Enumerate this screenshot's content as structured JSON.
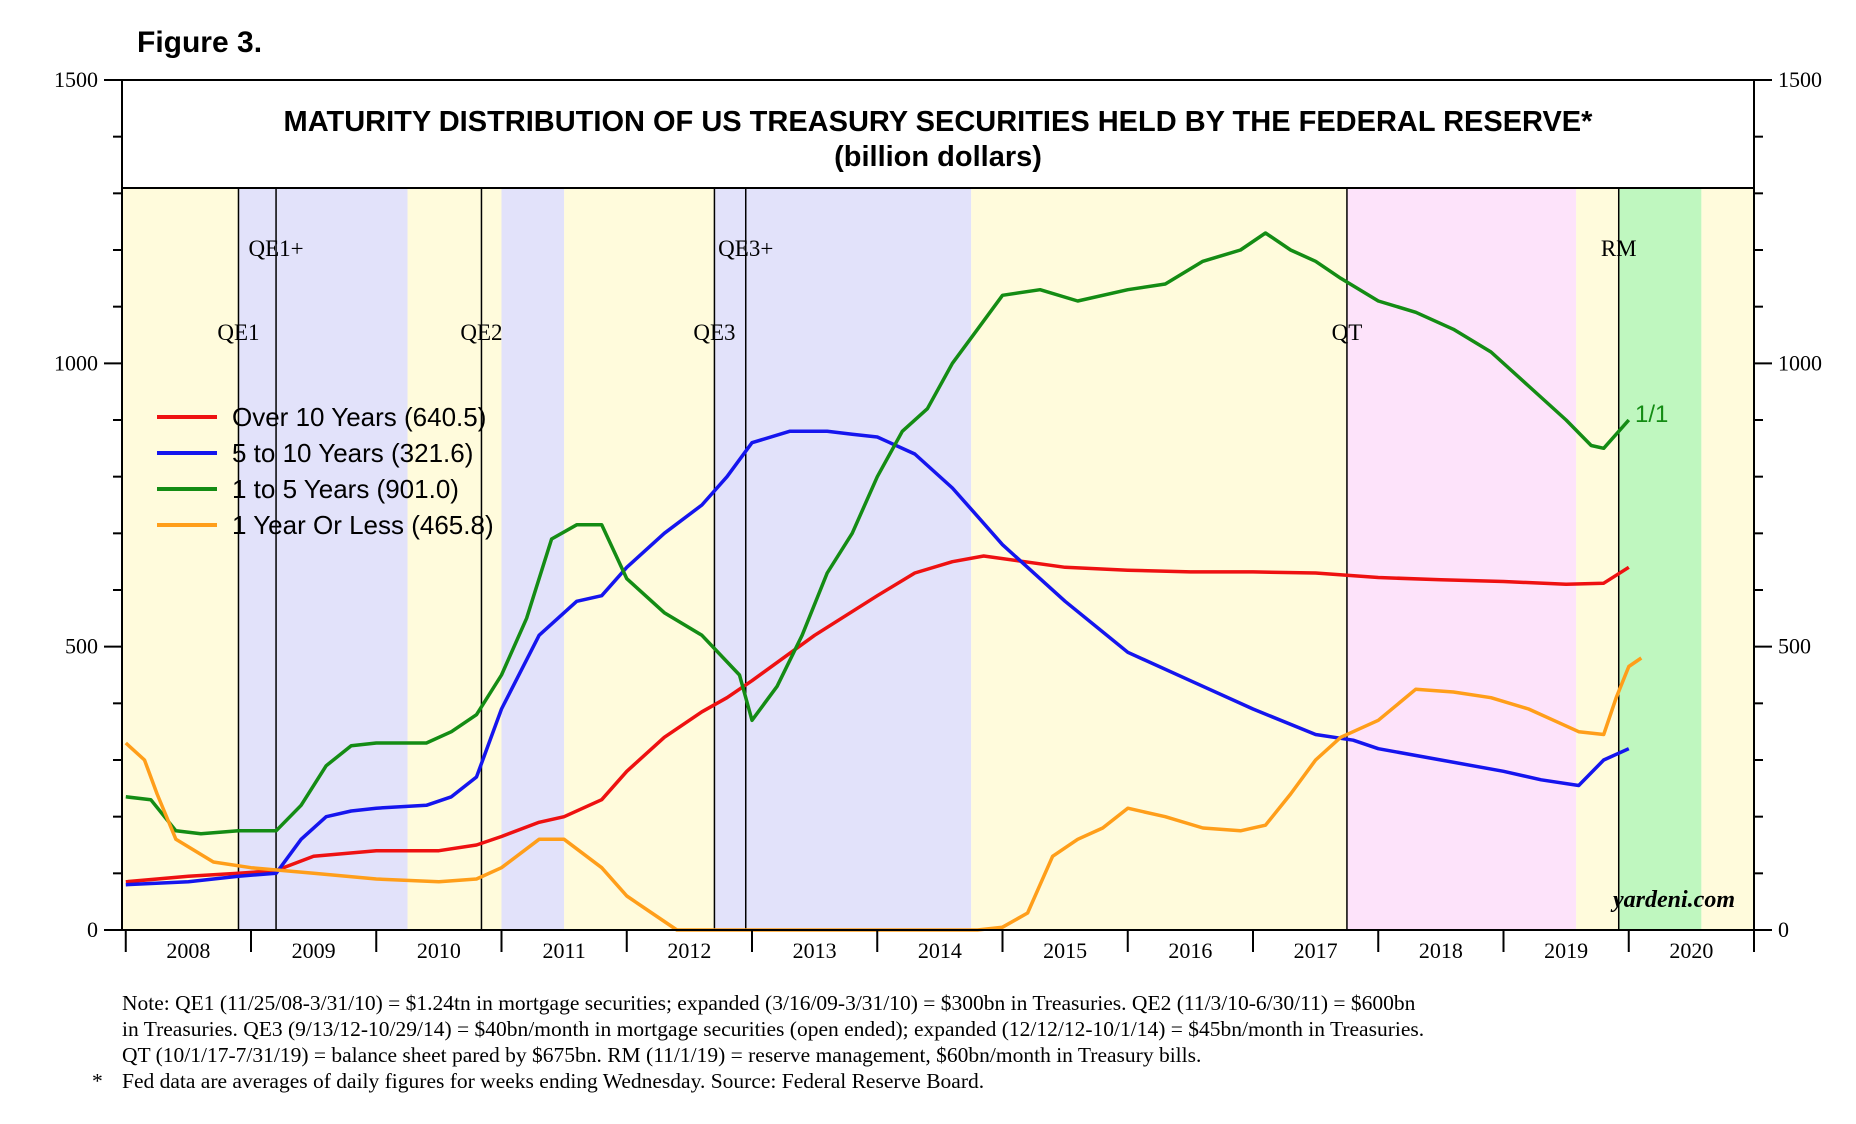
{
  "figure_label": "Figure 3.",
  "chart_data": {
    "type": "line",
    "title": "MATURITY DISTRIBUTION OF US TREASURY SECURITIES HELD BY THE FEDERAL RESERVE*",
    "subtitle": "(billion dollars)",
    "xlabel": "",
    "ylabel": "",
    "xlim": [
      2007.97,
      2021.0
    ],
    "ylim": [
      0,
      1500
    ],
    "y_ticks": [
      "0",
      "500",
      "1000",
      "1500"
    ],
    "x_tick_labels": [
      "2008",
      "2009",
      "2010",
      "2011",
      "2012",
      "2013",
      "2014",
      "2015",
      "2016",
      "2017",
      "2018",
      "2019",
      "2020"
    ],
    "credit": "yardeni.com",
    "latest_label": "1/1",
    "shaded_periods": [
      {
        "start": 2007.97,
        "end": 2008.9,
        "color": "#fffbdc"
      },
      {
        "start": 2008.9,
        "end": 2010.25,
        "color": "#e2e2fa"
      },
      {
        "start": 2010.25,
        "end": 2011.0,
        "color": "#fffbdc"
      },
      {
        "start": 2011.0,
        "end": 2011.5,
        "color": "#e2e2fa"
      },
      {
        "start": 2011.5,
        "end": 2012.7,
        "color": "#fffbdc"
      },
      {
        "start": 2012.7,
        "end": 2014.75,
        "color": "#e2e2fa"
      },
      {
        "start": 2014.75,
        "end": 2017.75,
        "color": "#fffbdc"
      },
      {
        "start": 2017.75,
        "end": 2019.58,
        "color": "#fde3fa"
      },
      {
        "start": 2019.58,
        "end": 2019.92,
        "color": "#fffbdc"
      },
      {
        "start": 2019.92,
        "end": 2020.58,
        "color": "#bff7bf"
      },
      {
        "start": 2020.58,
        "end": 2021.0,
        "color": "#fffbdc"
      }
    ],
    "events": [
      {
        "label": "QE1",
        "date": 2008.9,
        "level": 1
      },
      {
        "label": "QE1+",
        "date": 2009.2,
        "level": 2
      },
      {
        "label": "QE2",
        "date": 2010.84,
        "level": 1
      },
      {
        "label": "QE3",
        "date": 2012.7,
        "level": 1
      },
      {
        "label": "QE3+",
        "date": 2012.95,
        "level": 2
      },
      {
        "label": "QT",
        "date": 2017.75,
        "level": 1
      },
      {
        "label": "RM",
        "date": 2019.92,
        "level": 2
      }
    ],
    "legend": [
      {
        "label": "Over 10 Years (640.5)",
        "color": "#ee1111"
      },
      {
        "label": "5 to 10 Years (321.6)",
        "color": "#1515ee"
      },
      {
        "label": "1 to 5 Years (901.0)",
        "color": "#148c14"
      },
      {
        "label": "1 Year Or Less (465.8)",
        "color": "#ff9e1a"
      }
    ],
    "series": [
      {
        "name": "Over 10 Years",
        "color": "#ee1111",
        "x": [
          2008.0,
          2008.5,
          2008.9,
          2009.2,
          2009.5,
          2010.0,
          2010.5,
          2010.8,
          2011.0,
          2011.3,
          2011.5,
          2011.8,
          2012.0,
          2012.3,
          2012.6,
          2012.8,
          2013.0,
          2013.5,
          2014.0,
          2014.3,
          2014.6,
          2014.85,
          2015.5,
          2016.0,
          2016.5,
          2017.0,
          2017.5,
          2018.0,
          2018.5,
          2019.0,
          2019.5,
          2019.8,
          2020.0
        ],
        "y": [
          85,
          95,
          100,
          105,
          130,
          140,
          140,
          150,
          165,
          190,
          200,
          230,
          280,
          340,
          385,
          410,
          440,
          520,
          590,
          630,
          650,
          660,
          640,
          635,
          632,
          632,
          630,
          622,
          618,
          615,
          610,
          612,
          640
        ]
      },
      {
        "name": "5 to 10 Years",
        "color": "#1515ee",
        "x": [
          2008.0,
          2008.5,
          2008.9,
          2009.2,
          2009.4,
          2009.6,
          2009.8,
          2010.0,
          2010.4,
          2010.6,
          2010.8,
          2011.0,
          2011.3,
          2011.6,
          2011.8,
          2012.0,
          2012.3,
          2012.6,
          2012.8,
          2013.0,
          2013.3,
          2013.6,
          2013.8,
          2014.0,
          2014.3,
          2014.6,
          2014.8,
          2015.0,
          2015.5,
          2016.0,
          2016.5,
          2017.0,
          2017.5,
          2017.8,
          2018.0,
          2018.5,
          2019.0,
          2019.3,
          2019.6,
          2019.8,
          2020.0
        ],
        "y": [
          80,
          85,
          95,
          100,
          160,
          200,
          210,
          215,
          220,
          235,
          270,
          390,
          520,
          580,
          590,
          640,
          700,
          750,
          800,
          860,
          880,
          880,
          875,
          870,
          840,
          780,
          730,
          680,
          580,
          490,
          440,
          390,
          345,
          335,
          320,
          300,
          280,
          265,
          255,
          300,
          320
        ]
      },
      {
        "name": "1 to 5 Years",
        "color": "#148c14",
        "x": [
          2008.0,
          2008.2,
          2008.4,
          2008.6,
          2008.9,
          2009.2,
          2009.4,
          2009.6,
          2009.8,
          2010.0,
          2010.4,
          2010.6,
          2010.8,
          2011.0,
          2011.2,
          2011.4,
          2011.6,
          2011.8,
          2012.0,
          2012.3,
          2012.6,
          2012.9,
          2013.0,
          2013.2,
          2013.4,
          2013.6,
          2013.8,
          2014.0,
          2014.2,
          2014.4,
          2014.6,
          2014.8,
          2015.0,
          2015.3,
          2015.6,
          2016.0,
          2016.3,
          2016.6,
          2016.9,
          2017.1,
          2017.3,
          2017.5,
          2017.7,
          2018.0,
          2018.3,
          2018.6,
          2018.9,
          2019.2,
          2019.5,
          2019.7,
          2019.8,
          2020.0
        ],
        "y": [
          235,
          230,
          175,
          170,
          175,
          175,
          220,
          290,
          325,
          330,
          330,
          350,
          380,
          450,
          550,
          690,
          715,
          715,
          620,
          560,
          520,
          450,
          370,
          430,
          520,
          630,
          700,
          800,
          880,
          920,
          1000,
          1060,
          1120,
          1130,
          1110,
          1130,
          1140,
          1180,
          1200,
          1230,
          1200,
          1180,
          1150,
          1110,
          1090,
          1060,
          1020,
          960,
          900,
          855,
          850,
          900
        ]
      },
      {
        "name": "1 Year Or Less",
        "color": "#ff9e1a",
        "x": [
          2008.0,
          2008.15,
          2008.25,
          2008.4,
          2008.7,
          2009.0,
          2009.5,
          2010.0,
          2010.5,
          2010.8,
          2011.0,
          2011.3,
          2011.5,
          2011.8,
          2012.0,
          2012.2,
          2012.4,
          2012.5,
          2012.7,
          2013.0,
          2013.5,
          2014.0,
          2014.5,
          2014.8,
          2015.0,
          2015.2,
          2015.4,
          2015.6,
          2015.8,
          2016.0,
          2016.3,
          2016.6,
          2016.9,
          2017.1,
          2017.3,
          2017.5,
          2017.7,
          2018.0,
          2018.3,
          2018.6,
          2018.9,
          2019.2,
          2019.4,
          2019.6,
          2019.8,
          2019.9,
          2020.0,
          2020.1
        ],
        "y": [
          330,
          300,
          240,
          160,
          120,
          110,
          100,
          90,
          85,
          90,
          110,
          160,
          160,
          110,
          60,
          30,
          0,
          0,
          0,
          0,
          0,
          0,
          0,
          0,
          5,
          30,
          130,
          160,
          180,
          215,
          200,
          180,
          175,
          185,
          240,
          300,
          340,
          370,
          425,
          420,
          410,
          390,
          370,
          350,
          345,
          410,
          465,
          480
        ]
      }
    ]
  },
  "notes": {
    "line1": "Note: QE1 (11/25/08-3/31/10) = $1.24tn in mortgage securities; expanded (3/16/09-3/31/10) = $300bn in Treasuries. QE2 (11/3/10-6/30/11) = $600bn",
    "line2": "in Treasuries. QE3 (9/13/12-10/29/14) = $40bn/month in mortgage securities (open ended); expanded (12/12/12-10/1/14) = $45bn/month in Treasuries.",
    "line3": "QT (10/1/17-7/31/19) = balance sheet pared by $675bn. RM (11/1/19) = reserve management, $60bn/month in Treasury bills.",
    "footnote_marker": "*",
    "footnote": "Fed data are averages of daily figures for weeks ending Wednesday. Source: Federal Reserve Board."
  }
}
